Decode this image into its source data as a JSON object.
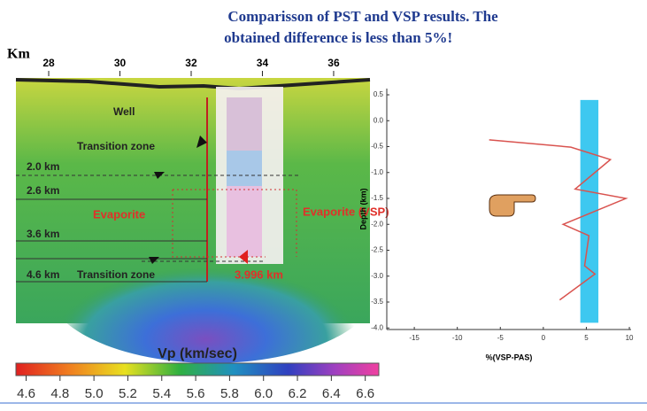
{
  "title": "Comparisson of PST and VSP results. The obtained difference is less than 5%!",
  "seismic": {
    "axis_label": "Km",
    "km_lim": [
      27.08,
      37.02
    ],
    "km_ticks": [
      28,
      30,
      32,
      34,
      36
    ],
    "labels": {
      "well": "Well",
      "transition_top": "Transition zone",
      "d20": "2.0 km",
      "d26": "2.6 km",
      "evaporite": "Evaporite",
      "d36": "3.6 km",
      "d46": "4.6 km",
      "transition_bottom": "Transition zone",
      "evaporite_vsp": "Evaporite (VSP)",
      "vsp_depth": "3.996 km"
    }
  },
  "colorbar": {
    "title": "Vp (km/sec)",
    "lim": [
      4.54,
      6.68
    ],
    "ticks": [
      4.6,
      4.8,
      {
        "value": 5.0,
        "label": "5.0"
      },
      5.2,
      5.4,
      5.6,
      5.8,
      {
        "value": 6.0,
        "label": "6.0"
      },
      6.2,
      6.4,
      6.6
    ]
  },
  "chart_data": {
    "type": "line",
    "xlabel": "%(VSP-PAS)",
    "ylabel": "Depth (km)",
    "xlim": [
      -18.2,
      10.2
    ],
    "ylim": [
      -4.03,
      0.62
    ],
    "xticks": [
      -15,
      -10,
      -5,
      0,
      5,
      10
    ],
    "yticks": [
      0.5,
      {
        "value": 0,
        "label": "0.0"
      },
      -0.5,
      {
        "value": -1,
        "label": "-1.0"
      },
      -1.5,
      {
        "value": -2,
        "label": "-2.0"
      },
      -2.5,
      {
        "value": -3,
        "label": "-3.0"
      },
      -3.5,
      {
        "value": -4,
        "label": "-4.0"
      }
    ],
    "band": {
      "xmin": 4.3,
      "xmax": 6.4,
      "ymin": -3.9,
      "ymax": 0.4,
      "color": "#3ec8f0"
    },
    "series": [
      {
        "color": "#d9534f",
        "x": [
          -6.3,
          3.2,
          7.8,
          3.7,
          9.6,
          2.3,
          5.3,
          4.8,
          6.0,
          1.9
        ],
        "values": [
          -0.37,
          -0.51,
          -0.75,
          -1.32,
          -1.5,
          -2.0,
          -2.22,
          -2.8,
          -2.96,
          -3.46
        ]
      }
    ]
  }
}
